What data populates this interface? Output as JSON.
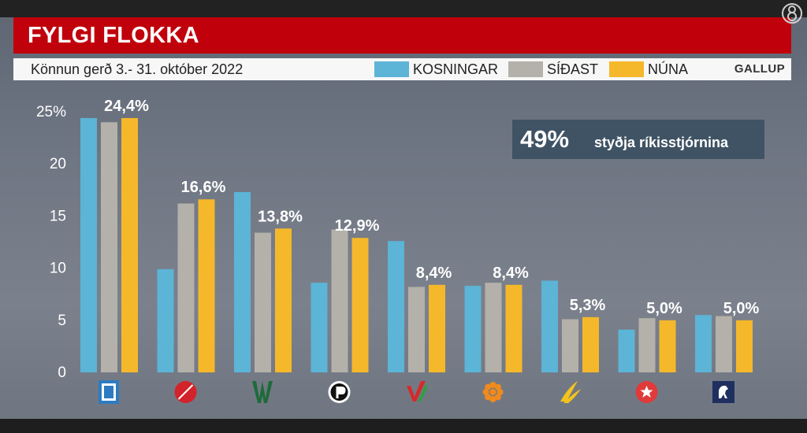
{
  "header": {
    "title": "FYLGI FLOKKA"
  },
  "subheader": {
    "subtitle": "Könnun  gerð 3.- 31. október 2022",
    "brand": "GALLUP",
    "legend": [
      {
        "label": "KOSNINGAR",
        "color": "#5cb4d6"
      },
      {
        "label": "SÍÐAST",
        "color": "#b4b1aa"
      },
      {
        "label": "NÚNA",
        "color": "#f5b82b"
      }
    ]
  },
  "callout": {
    "percent": "49%",
    "text": "styðja ríkisstjórnina"
  },
  "chart_data": {
    "type": "bar",
    "categories": [
      "D",
      "S",
      "B",
      "P",
      "V",
      "C",
      "F",
      "J",
      "M"
    ],
    "series": [
      {
        "name": "KOSNINGAR",
        "values": [
          24.4,
          9.9,
          17.3,
          8.6,
          12.6,
          8.3,
          8.8,
          4.1,
          5.5
        ]
      },
      {
        "name": "SÍÐAST",
        "values": [
          24.0,
          16.2,
          13.4,
          13.7,
          8.2,
          8.6,
          5.1,
          5.2,
          5.4
        ]
      },
      {
        "name": "NÚNA",
        "values": [
          24.4,
          16.6,
          13.8,
          12.9,
          8.4,
          8.4,
          5.3,
          5.0,
          5.0
        ]
      }
    ],
    "data_labels": [
      "24,4%",
      "16,6%",
      "13,8%",
      "12,9%",
      "8,4%",
      "8,4%",
      "5,3%",
      "5,0%",
      "5,0%"
    ],
    "y_ticks": [
      "0",
      "5",
      "10",
      "15",
      "20",
      "25%"
    ],
    "ylim": [
      0,
      25
    ],
    "legend_position": "top-right",
    "grid": false,
    "party_icons": [
      "d-logo-icon",
      "s-rose-logo-icon",
      "b-logo-icon",
      "pirate-logo-icon",
      "v-logo-icon",
      "c-logo-icon",
      "f-logo-icon",
      "j-star-logo-icon",
      "m-horse-logo-icon"
    ]
  }
}
